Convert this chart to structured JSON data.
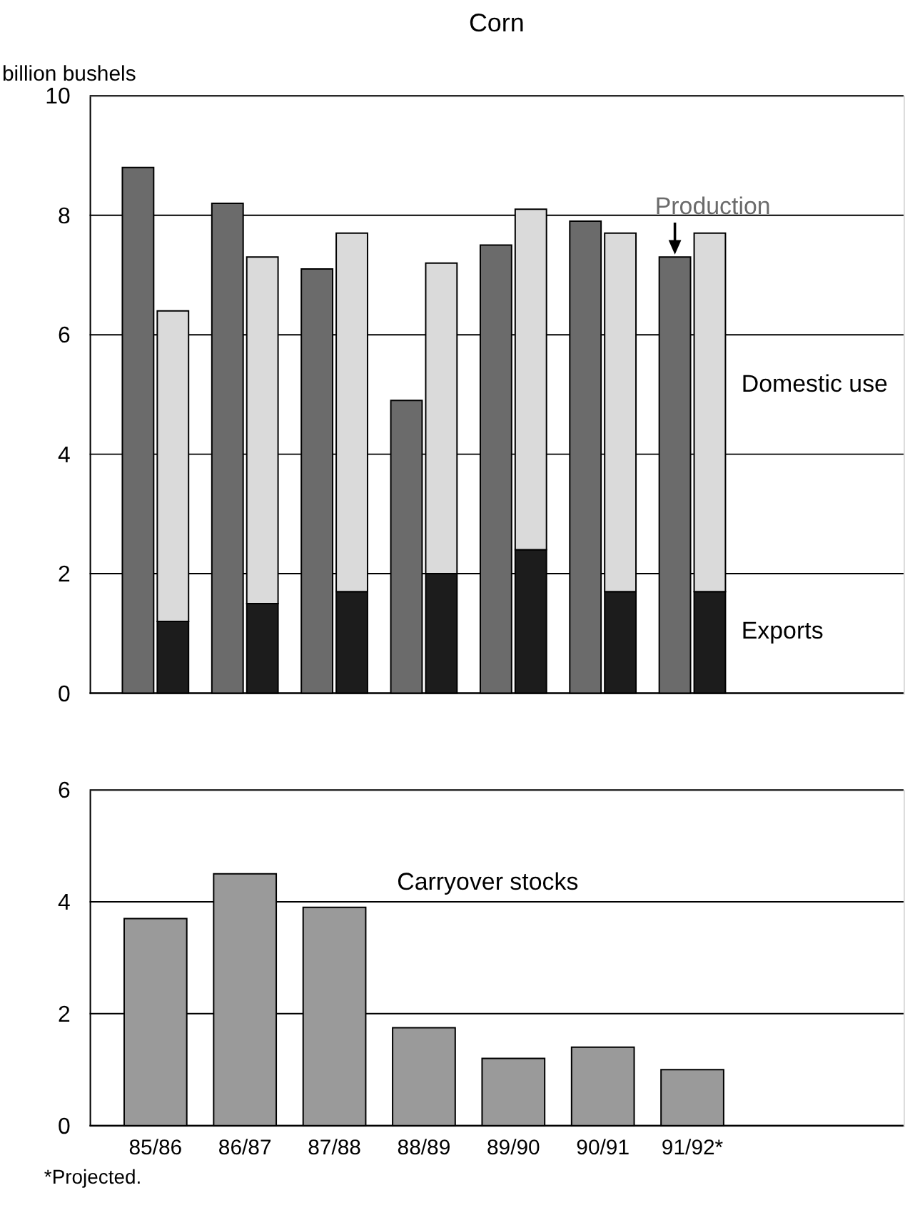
{
  "chart_data": [
    {
      "type": "bar",
      "title": "Corn",
      "ylabel": "billion bushels",
      "stacked": true,
      "grid": "y",
      "legend": false,
      "tick_labels": "y",
      "categories": [
        null,
        null,
        null,
        null,
        null,
        null,
        null,
        null,
        null,
        null,
        null,
        null,
        null,
        null
      ],
      "ylim": [
        0,
        10
      ],
      "yticks": [
        0,
        2,
        4,
        6,
        8,
        10
      ],
      "series": [
        {
          "name": "Production",
          "color": "#6b6b6b",
          "values": [
            8.8,
            null,
            8.2,
            null,
            7.1,
            null,
            4.9,
            null,
            7.5,
            null,
            7.9,
            null,
            7.3,
            null
          ]
        },
        {
          "name": "Exports",
          "color": "#1c1c1c",
          "values": [
            null,
            1.2,
            null,
            1.5,
            null,
            1.7,
            null,
            2.0,
            null,
            2.4,
            null,
            1.7,
            null,
            1.7
          ]
        },
        {
          "name": "Domestic use",
          "color": "#dadada",
          "values": [
            null,
            5.2,
            null,
            5.8,
            null,
            6.0,
            null,
            5.2,
            null,
            5.7,
            null,
            6.0,
            null,
            6.0
          ]
        }
      ]
    },
    {
      "type": "bar",
      "grid": "y",
      "legend": false,
      "categories": [
        "85/86",
        "86/87",
        "87/88",
        "88/89",
        "89/90",
        "90/91",
        "91/92*"
      ],
      "ylim": [
        0,
        6
      ],
      "yticks": [
        0,
        2,
        4,
        6
      ],
      "series": [
        {
          "name": "Carryover stocks",
          "color": "#9a9a9a",
          "values": [
            3.7,
            4.5,
            3.9,
            1.75,
            1.2,
            1.4,
            1.0
          ]
        }
      ],
      "annotations": [
        "*Projected."
      ]
    }
  ]
}
